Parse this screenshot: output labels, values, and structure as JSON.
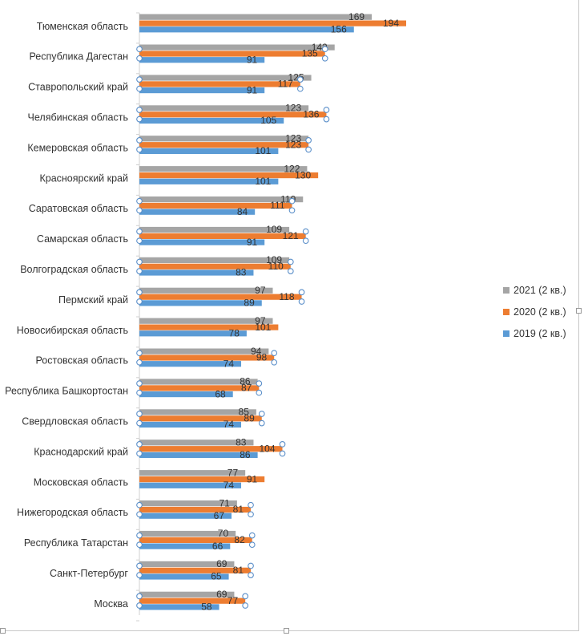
{
  "chart_data": {
    "type": "bar",
    "orientation": "horizontal",
    "categories": [
      "Тюменская область",
      "Республика Дагестан",
      "Ставропольский край",
      "Челябинская область",
      "Кемеровская область",
      "Красноярский край",
      "Саратовская область",
      "Самарская область",
      "Волгоградская область",
      "Пермский край",
      "Новосибирская область",
      "Ростовская область",
      "Республика Башкортостан",
      "Свердловская область",
      "Краснодарский край",
      "Московская область",
      "Нижегородская область",
      "Республика Татарстан",
      "Санкт-Петербург",
      "Москва"
    ],
    "series": [
      {
        "name": "2021 (2 кв.)",
        "color": "#a5a5a5",
        "values": [
          169,
          142,
          125,
          123,
          123,
          122,
          119,
          109,
          109,
          97,
          97,
          94,
          86,
          85,
          83,
          77,
          71,
          70,
          69,
          69
        ]
      },
      {
        "name": "2020 (2 кв.)",
        "color": "#ed7d31",
        "values": [
          194,
          135,
          117,
          136,
          123,
          130,
          111,
          121,
          110,
          118,
          101,
          98,
          87,
          89,
          104,
          91,
          81,
          82,
          81,
          77
        ]
      },
      {
        "name": "2019 (2 кв.)",
        "color": "#5b9bd5",
        "values": [
          156,
          91,
          91,
          105,
          101,
          101,
          84,
          91,
          83,
          89,
          78,
          74,
          68,
          74,
          86,
          74,
          67,
          66,
          65,
          58
        ]
      }
    ],
    "xlim": [
      0,
      200
    ],
    "data_labels": true,
    "gridlines": false,
    "legend_position": "right"
  }
}
